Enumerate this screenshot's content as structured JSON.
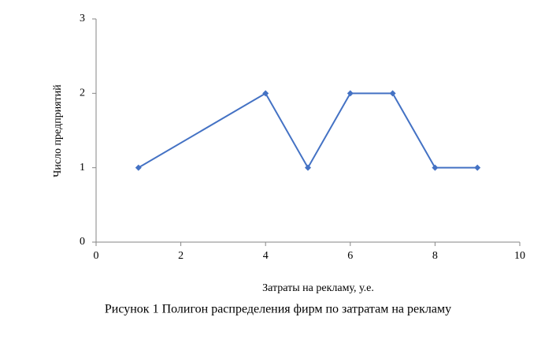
{
  "chart_data": {
    "type": "line",
    "caption": "Рисунок 1 Полигон распределения фирм по затратам на рекламу",
    "x_label": "Затраты на рекламу, у.е.",
    "y_label": "Число предприятий",
    "x": [
      1,
      4,
      5,
      6,
      7,
      8,
      9
    ],
    "values": [
      1,
      2,
      1,
      2,
      2,
      1,
      1
    ],
    "color": "#4472c4",
    "xlim": [
      0,
      10
    ],
    "xticks": [
      0,
      2,
      4,
      6,
      8,
      10
    ],
    "ylim": [
      0,
      3
    ],
    "yticks": [
      0,
      1,
      2,
      3
    ],
    "grid": false
  }
}
